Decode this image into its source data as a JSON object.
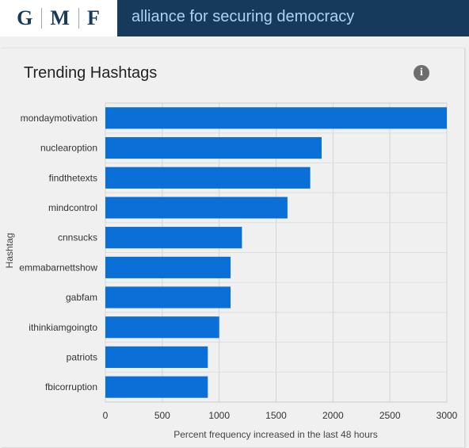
{
  "header": {
    "logo_letters": [
      "G",
      "M",
      "F"
    ],
    "tagline": "alliance for securing democracy",
    "background_color": "#163a5c",
    "tagline_color": "#a9d4f2"
  },
  "card": {
    "title": "Trending Hashtags",
    "info_icon": "info-icon",
    "info_glyph": "i"
  },
  "chart_data": {
    "type": "bar",
    "orientation": "horizontal",
    "title": "Trending Hashtags",
    "xlabel": "Percent frequency increased in the last 48 hours",
    "ylabel": "Hashtag",
    "categories": [
      "mondaymotivation",
      "nuclearoption",
      "findthetexts",
      "mindcontrol",
      "cnnsucks",
      "emmabarnettshow",
      "gabfam",
      "ithinkiamgoingto",
      "patriots",
      "fbicorruption"
    ],
    "values": [
      3000,
      1900,
      1800,
      1600,
      1200,
      1100,
      1100,
      1000,
      900,
      900
    ],
    "xlim": [
      0,
      3000
    ],
    "xticks": [
      0,
      500,
      1000,
      1500,
      2000,
      2500,
      3000
    ],
    "grid": true,
    "legend": "none",
    "bar_color": "#0a6fd6"
  }
}
